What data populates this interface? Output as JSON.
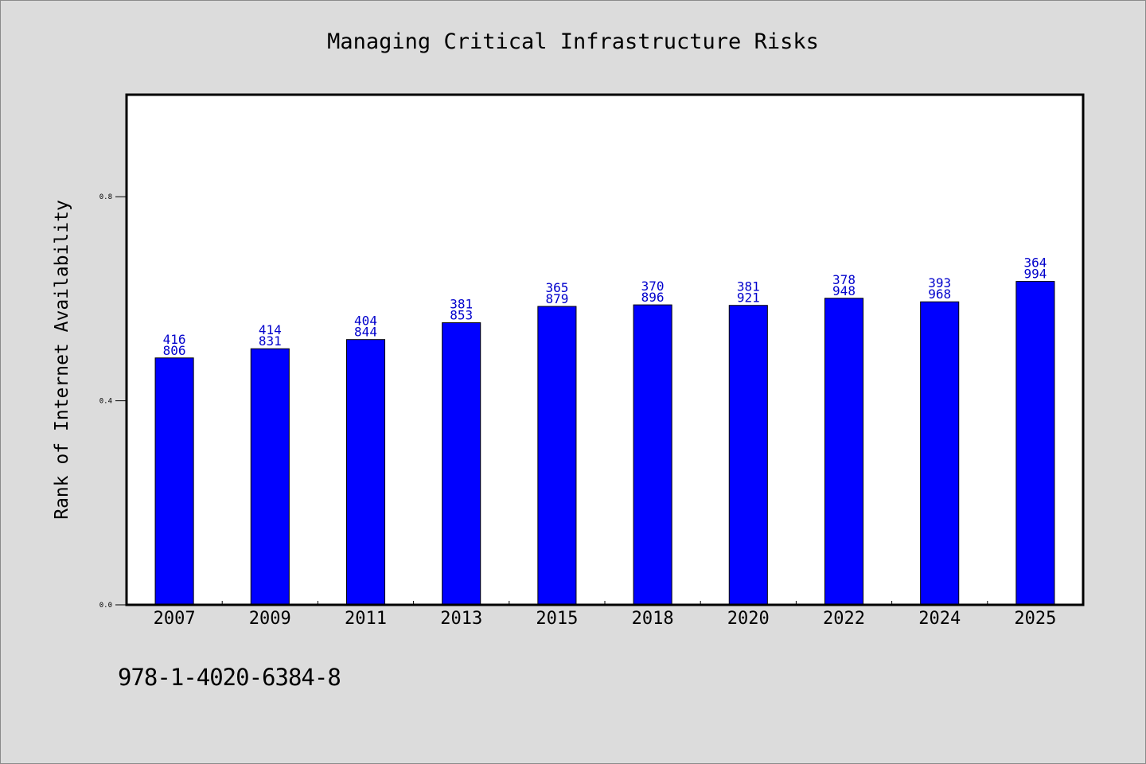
{
  "chart_data": {
    "type": "bar",
    "title": "Managing Critical Infrastructure Risks",
    "xlabel": "",
    "ylabel": "Rank of Internet Availability",
    "categories": [
      "2007",
      "2009",
      "2011",
      "2013",
      "2015",
      "2018",
      "2020",
      "2022",
      "2024",
      "2025"
    ],
    "values": [
      0.484,
      0.502,
      0.52,
      0.553,
      0.585,
      0.588,
      0.587,
      0.601,
      0.594,
      0.634
    ],
    "data_labels": [
      [
        "416",
        "806"
      ],
      [
        "414",
        "831"
      ],
      [
        "404",
        "844"
      ],
      [
        "381",
        "853"
      ],
      [
        "365",
        "879"
      ],
      [
        "370",
        "896"
      ],
      [
        "381",
        "921"
      ],
      [
        "378",
        "948"
      ],
      [
        "393",
        "968"
      ],
      [
        "364",
        "994"
      ]
    ],
    "yticks": [
      0.0,
      0.4,
      0.8
    ],
    "ytick_labels": [
      "0.0",
      "0.4",
      "0.8"
    ],
    "ylim": [
      0,
      1.0
    ],
    "grid": false,
    "colors": {
      "bar": "#0000ff",
      "label": "#0000cc",
      "plot_bg": "#ffffff",
      "page_bg": "#dcdcdc"
    }
  },
  "footer": {
    "isbn": "978-1-4020-6384-8"
  }
}
